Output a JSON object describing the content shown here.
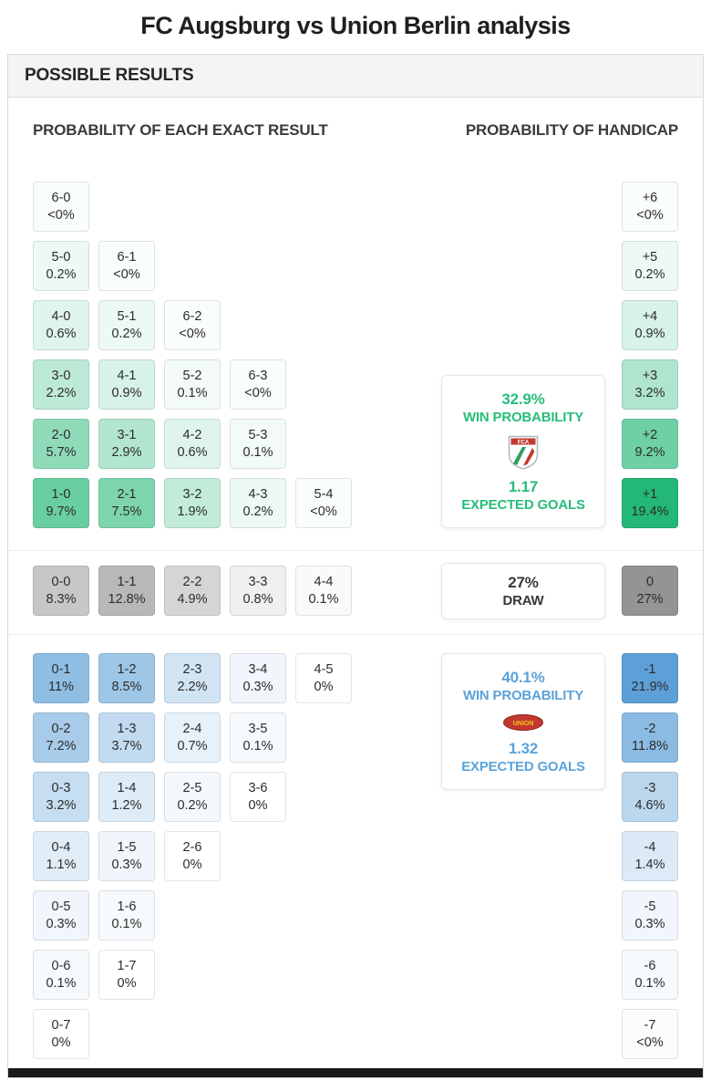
{
  "page_title": "FC Augsburg vs Union Berlin analysis",
  "panel": {
    "header": "POSSIBLE RESULTS",
    "left_heading": "PROBABILITY OF EACH EXACT RESULT",
    "right_heading": "PROBABILITY OF HANDICAP"
  },
  "colors": {
    "home_accent": "#27bd7c",
    "away_accent": "#5ba3d9",
    "home_shade": "#24b876",
    "draw_shade": "#949494",
    "away_shade": "#5ca0d7",
    "bottom_bar": "#1a1a1a"
  },
  "summary": {
    "home": {
      "win_prob": "32.9%",
      "win_label": "WIN PROBABILITY",
      "expected_goals": "1.17",
      "eg_label": "EXPECTED GOALS",
      "crest": "fc-augsburg-crest"
    },
    "draw": {
      "prob": "27%",
      "label": "DRAW"
    },
    "away": {
      "win_prob": "40.1%",
      "win_label": "WIN PROBABILITY",
      "expected_goals": "1.32",
      "eg_label": "EXPECTED GOALS",
      "crest": "union-berlin-crest"
    }
  },
  "grid": {
    "sections": [
      {
        "group": "home",
        "rows": [
          [
            {
              "score": "6-0",
              "prob": "<0%",
              "value": 0.03
            }
          ],
          [
            {
              "score": "5-0",
              "prob": "0.2%",
              "value": 0.2
            },
            {
              "score": "6-1",
              "prob": "<0%",
              "value": 0.03
            }
          ],
          [
            {
              "score": "4-0",
              "prob": "0.6%",
              "value": 0.6
            },
            {
              "score": "5-1",
              "prob": "0.2%",
              "value": 0.2
            },
            {
              "score": "6-2",
              "prob": "<0%",
              "value": 0.03
            }
          ],
          [
            {
              "score": "3-0",
              "prob": "2.2%",
              "value": 2.2
            },
            {
              "score": "4-1",
              "prob": "0.9%",
              "value": 0.9
            },
            {
              "score": "5-2",
              "prob": "0.1%",
              "value": 0.1
            },
            {
              "score": "6-3",
              "prob": "<0%",
              "value": 0.03
            }
          ],
          [
            {
              "score": "2-0",
              "prob": "5.7%",
              "value": 5.7
            },
            {
              "score": "3-1",
              "prob": "2.9%",
              "value": 2.9
            },
            {
              "score": "4-2",
              "prob": "0.6%",
              "value": 0.6
            },
            {
              "score": "5-3",
              "prob": "0.1%",
              "value": 0.1
            }
          ],
          [
            {
              "score": "1-0",
              "prob": "9.7%",
              "value": 9.7
            },
            {
              "score": "2-1",
              "prob": "7.5%",
              "value": 7.5
            },
            {
              "score": "3-2",
              "prob": "1.9%",
              "value": 1.9
            },
            {
              "score": "4-3",
              "prob": "0.2%",
              "value": 0.2
            },
            {
              "score": "5-4",
              "prob": "<0%",
              "value": 0.03
            }
          ]
        ],
        "handicap": [
          {
            "line": "+6",
            "prob": "<0%",
            "value": 0.03
          },
          {
            "line": "+5",
            "prob": "0.2%",
            "value": 0.2
          },
          {
            "line": "+4",
            "prob": "0.9%",
            "value": 0.9
          },
          {
            "line": "+3",
            "prob": "3.2%",
            "value": 3.2
          },
          {
            "line": "+2",
            "prob": "9.2%",
            "value": 9.2
          },
          {
            "line": "+1",
            "prob": "19.4%",
            "value": 19.4
          }
        ]
      },
      {
        "group": "draw",
        "rows": [
          [
            {
              "score": "0-0",
              "prob": "8.3%",
              "value": 8.3
            },
            {
              "score": "1-1",
              "prob": "12.8%",
              "value": 12.8
            },
            {
              "score": "2-2",
              "prob": "4.9%",
              "value": 4.9
            },
            {
              "score": "3-3",
              "prob": "0.8%",
              "value": 0.8
            },
            {
              "score": "4-4",
              "prob": "0.1%",
              "value": 0.1
            }
          ]
        ],
        "handicap": [
          {
            "line": "0",
            "prob": "27%",
            "value": 27
          }
        ]
      },
      {
        "group": "away",
        "rows": [
          [
            {
              "score": "0-1",
              "prob": "11%",
              "value": 11
            },
            {
              "score": "1-2",
              "prob": "8.5%",
              "value": 8.5
            },
            {
              "score": "2-3",
              "prob": "2.2%",
              "value": 2.2
            },
            {
              "score": "3-4",
              "prob": "0.3%",
              "value": 0.3
            },
            {
              "score": "4-5",
              "prob": "0%",
              "value": 0
            }
          ],
          [
            {
              "score": "0-2",
              "prob": "7.2%",
              "value": 7.2
            },
            {
              "score": "1-3",
              "prob": "3.7%",
              "value": 3.7
            },
            {
              "score": "2-4",
              "prob": "0.7%",
              "value": 0.7
            },
            {
              "score": "3-5",
              "prob": "0.1%",
              "value": 0.1
            }
          ],
          [
            {
              "score": "0-3",
              "prob": "3.2%",
              "value": 3.2
            },
            {
              "score": "1-4",
              "prob": "1.2%",
              "value": 1.2
            },
            {
              "score": "2-5",
              "prob": "0.2%",
              "value": 0.2
            },
            {
              "score": "3-6",
              "prob": "0%",
              "value": 0
            }
          ],
          [
            {
              "score": "0-4",
              "prob": "1.1%",
              "value": 1.1
            },
            {
              "score": "1-5",
              "prob": "0.3%",
              "value": 0.3
            },
            {
              "score": "2-6",
              "prob": "0%",
              "value": 0
            }
          ],
          [
            {
              "score": "0-5",
              "prob": "0.3%",
              "value": 0.3
            },
            {
              "score": "1-6",
              "prob": "0.1%",
              "value": 0.1
            }
          ],
          [
            {
              "score": "0-6",
              "prob": "0.1%",
              "value": 0.1
            },
            {
              "score": "1-7",
              "prob": "0%",
              "value": 0
            }
          ],
          [
            {
              "score": "0-7",
              "prob": "0%",
              "value": 0
            }
          ]
        ],
        "handicap": [
          {
            "line": "-1",
            "prob": "21.9%",
            "value": 21.9
          },
          {
            "line": "-2",
            "prob": "11.8%",
            "value": 11.8
          },
          {
            "line": "-3",
            "prob": "4.6%",
            "value": 4.6
          },
          {
            "line": "-4",
            "prob": "1.4%",
            "value": 1.4
          },
          {
            "line": "-5",
            "prob": "0.3%",
            "value": 0.3
          },
          {
            "line": "-6",
            "prob": "0.1%",
            "value": 0.1
          },
          {
            "line": "-7",
            "prob": "<0%",
            "value": 0.03
          }
        ]
      }
    ]
  }
}
